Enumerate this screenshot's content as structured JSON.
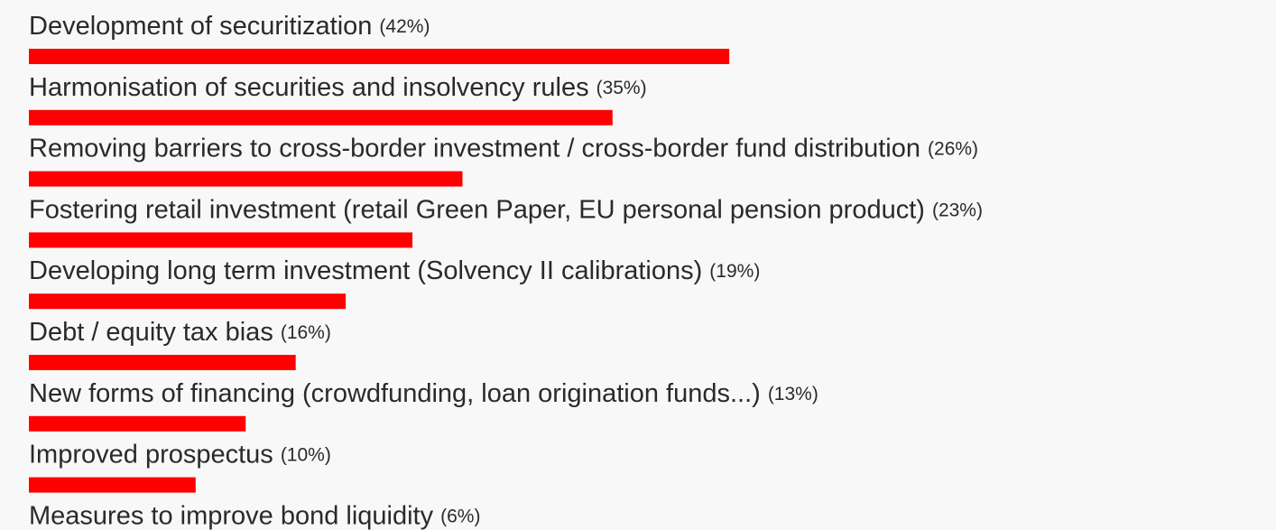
{
  "chart_data": {
    "type": "bar",
    "categories": [
      "Development of securitization",
      "Harmonisation of securities and insolvency rules",
      "Removing barriers to cross-border investment / cross-border fund distribution",
      "Fostering retail investment (retail Green Paper, EU personal pension product)",
      "Developing long term investment (Solvency II calibrations)",
      "Debt / equity tax bias",
      "New forms of financing (crowdfunding, loan origination funds...)",
      "Improved prospectus",
      "Measures to improve bond liquidity"
    ],
    "values": [
      42,
      35,
      26,
      23,
      19,
      16,
      13,
      10,
      6
    ],
    "value_labels": [
      "(42%)",
      "(35%)",
      "(26%)",
      "(23%)",
      "(19%)",
      "(16%)",
      "(13%)",
      "(10%)",
      "(6%)"
    ],
    "color": "#ff0000"
  }
}
